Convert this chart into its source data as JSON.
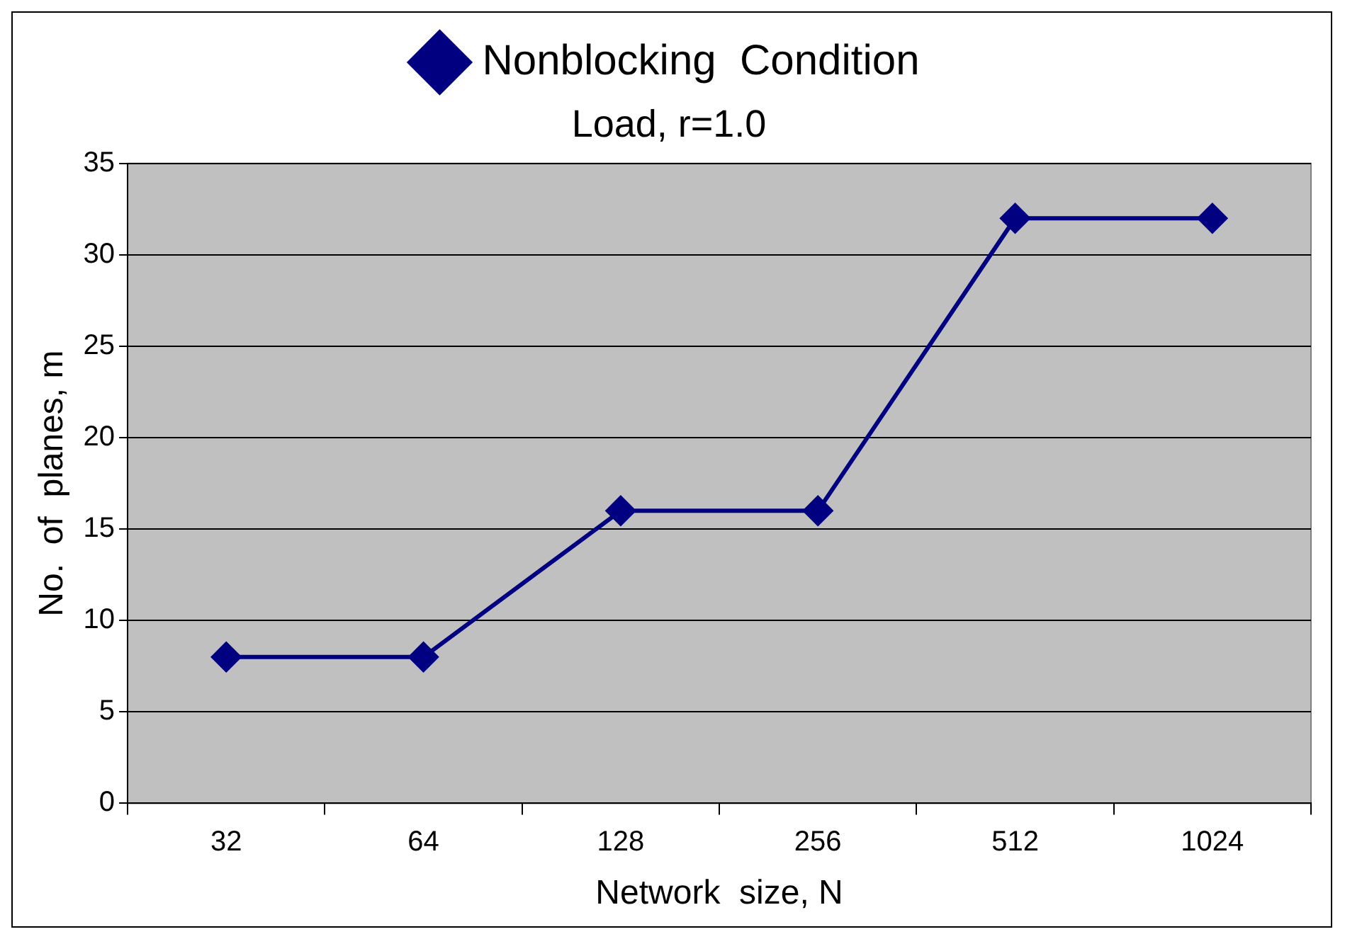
{
  "chart_data": {
    "type": "line",
    "title": "Load, r=1.0",
    "xlabel": "Network  size, N",
    "ylabel": "No.  of  planes, m",
    "categories": [
      "32",
      "64",
      "128",
      "256",
      "512",
      "1024"
    ],
    "series": [
      {
        "name": "Nonblocking  Condition",
        "color": "#000080",
        "values": [
          8,
          8,
          16,
          16,
          32,
          32
        ]
      }
    ],
    "ylim": [
      0,
      35
    ],
    "yticks": [
      0,
      5,
      10,
      15,
      20,
      25,
      30,
      35
    ],
    "grid": "y",
    "legend": "top",
    "marker": "diamond",
    "line_style": "solid"
  }
}
